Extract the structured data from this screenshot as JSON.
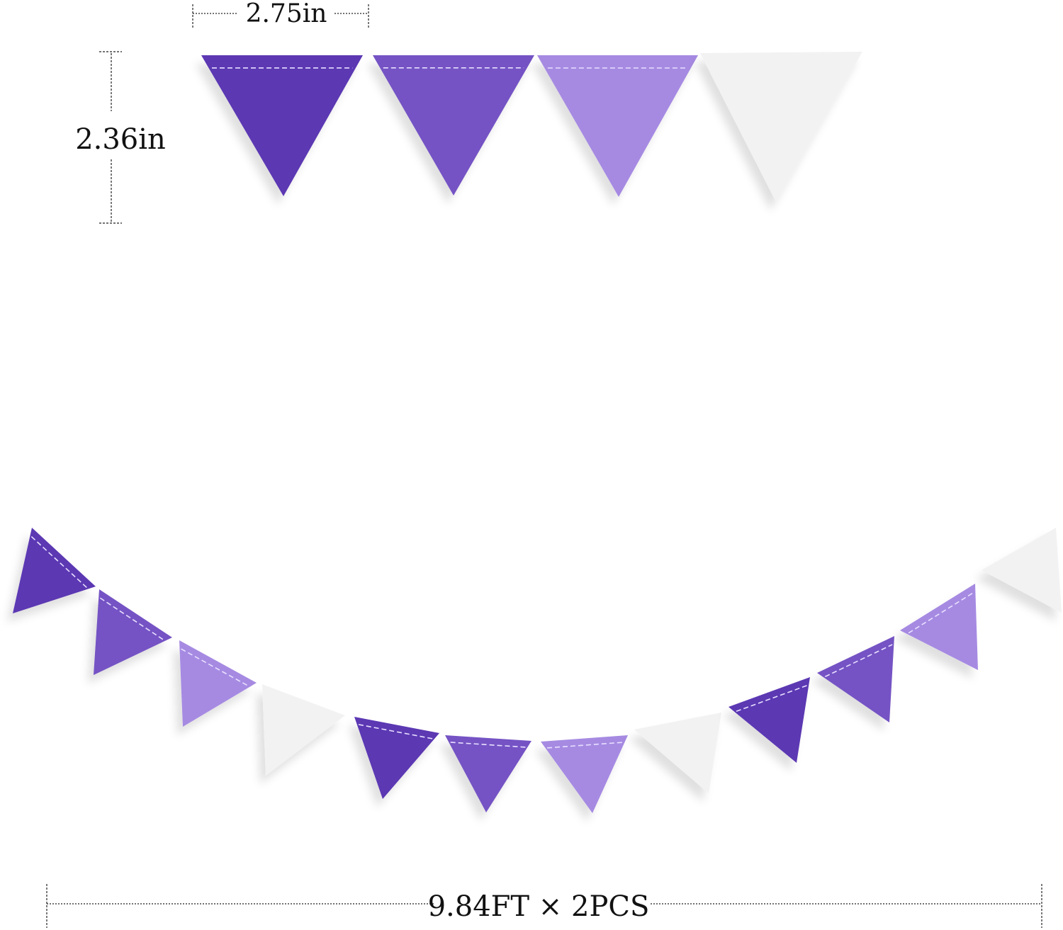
{
  "dimensions": {
    "width_label": "2.75in",
    "height_label": "2.36in",
    "length_label": "9.84FT × 2PCS"
  },
  "colors": {
    "dark_purple": "#5c37b3",
    "medium_purple": "#7453c4",
    "light_purple": "#a68ae2",
    "white_felt": "#f2f2f2",
    "stitch": "#e8e0ff"
  },
  "pennant_sequence": [
    "dark_purple",
    "medium_purple",
    "light_purple",
    "white_felt"
  ]
}
